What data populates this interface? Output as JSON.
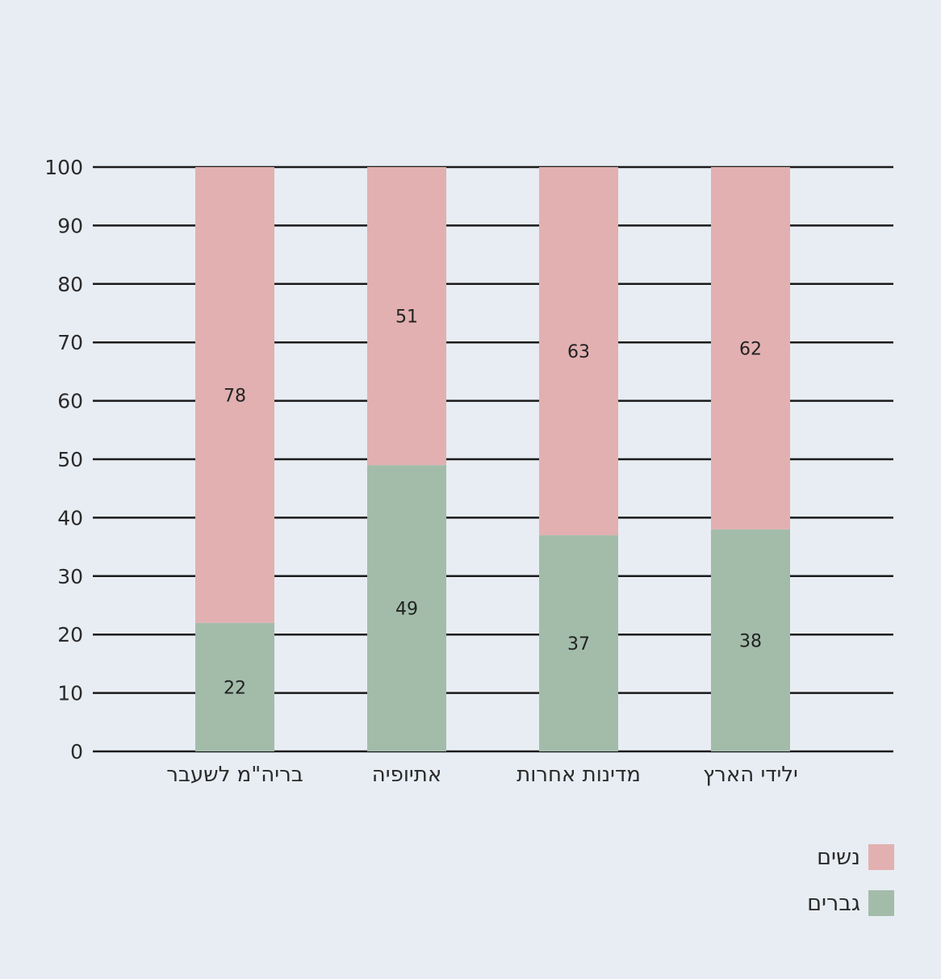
{
  "chart_data": {
    "type": "bar",
    "stacked": true,
    "categories": [
      "בריה\"מ לשעבר",
      "אתיופיה",
      "מדינות אחרות",
      "ילידי הארץ"
    ],
    "series": [
      {
        "name": "גברים",
        "values": [
          22,
          49,
          37,
          38
        ],
        "color": "#a3bcaa"
      },
      {
        "name": "נשים",
        "values": [
          78,
          51,
          63,
          62
        ],
        "color": "#e2b0b1"
      }
    ],
    "ylim": [
      0,
      100
    ],
    "yticks": [
      0,
      10,
      20,
      30,
      40,
      50,
      60,
      70,
      80,
      90,
      100
    ],
    "grid": true,
    "legend_position": "bottom-right",
    "title": "",
    "xlabel": "",
    "ylabel": ""
  },
  "legend": {
    "women_label": "נשים",
    "men_label": "גברים"
  },
  "colors": {
    "background": "#e8edf3",
    "women": "#e2b0b1",
    "men": "#a3bcaa",
    "gridline": "#1a1a1a",
    "text": "#2a2a2a"
  }
}
